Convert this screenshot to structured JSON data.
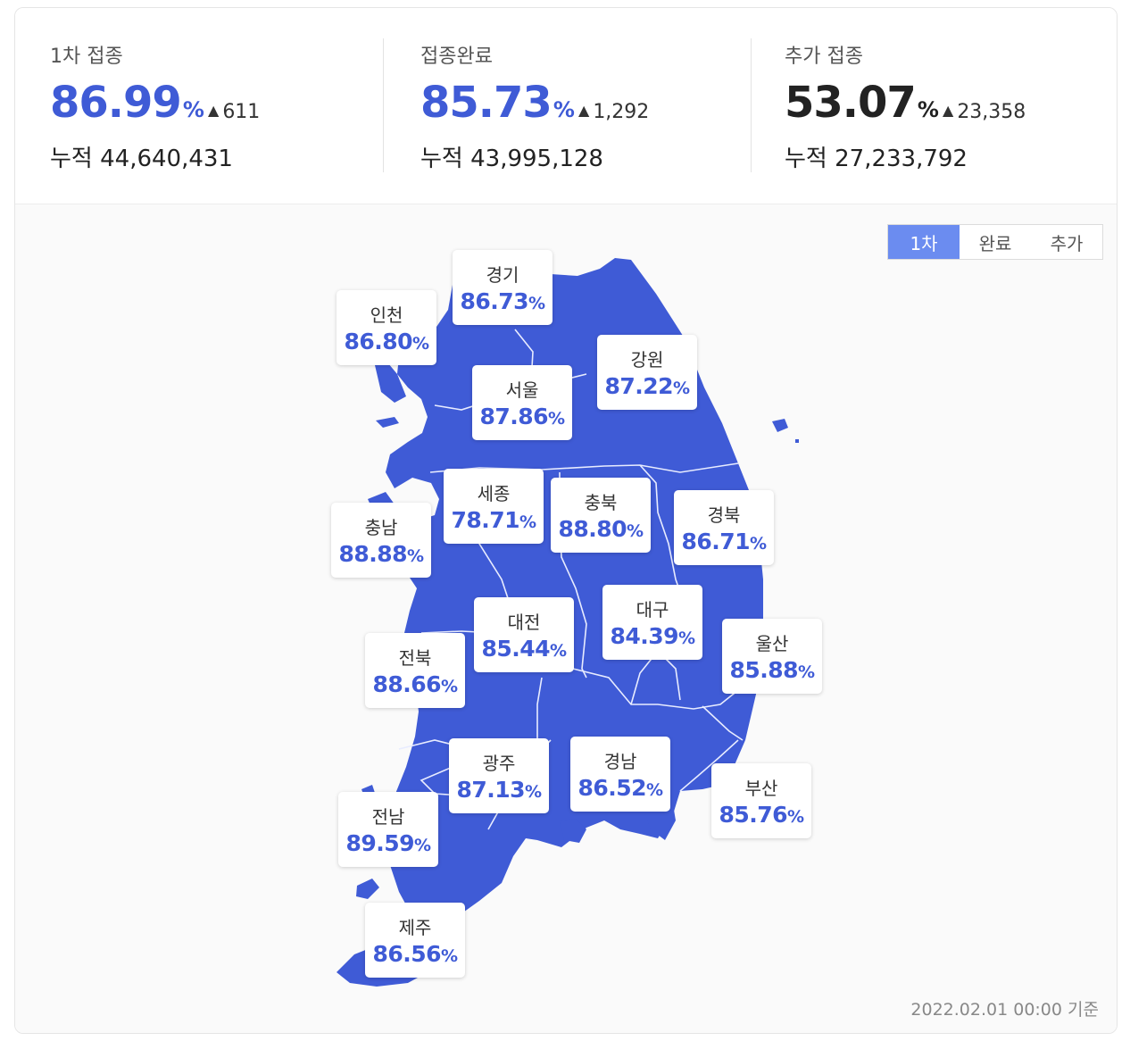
{
  "stats": [
    {
      "label": "1차 접종",
      "rate": "86.99",
      "pct": "%",
      "delta": "611",
      "cumulative": "누적 44,640,431",
      "color": "#3f5bd6"
    },
    {
      "label": "접종완료",
      "rate": "85.73",
      "pct": "%",
      "delta": "1,292",
      "cumulative": "누적 43,995,128",
      "color": "#3f5bd6"
    },
    {
      "label": "추가 접종",
      "rate": "53.07",
      "pct": "%",
      "delta": "23,358",
      "cumulative": "누적 27,233,792",
      "color": "#222222"
    }
  ],
  "delta_icon": "up-triangle-icon",
  "toggle": {
    "options": [
      "1차",
      "완료",
      "추가"
    ],
    "selected": "1차"
  },
  "map_color": "#3f5bd6",
  "regions": [
    {
      "name": "경기",
      "value": "86.73"
    },
    {
      "name": "인천",
      "value": "86.80"
    },
    {
      "name": "강원",
      "value": "87.22"
    },
    {
      "name": "서울",
      "value": "87.86"
    },
    {
      "name": "세종",
      "value": "78.71"
    },
    {
      "name": "충북",
      "value": "88.80"
    },
    {
      "name": "경북",
      "value": "86.71"
    },
    {
      "name": "충남",
      "value": "88.88"
    },
    {
      "name": "대구",
      "value": "84.39"
    },
    {
      "name": "대전",
      "value": "85.44"
    },
    {
      "name": "울산",
      "value": "85.88"
    },
    {
      "name": "전북",
      "value": "88.66"
    },
    {
      "name": "광주",
      "value": "87.13"
    },
    {
      "name": "경남",
      "value": "86.52"
    },
    {
      "name": "부산",
      "value": "85.76"
    },
    {
      "name": "전남",
      "value": "89.59"
    },
    {
      "name": "제주",
      "value": "86.56"
    }
  ],
  "pct_symbol": "%",
  "footer": "2022.02.01 00:00 기준"
}
